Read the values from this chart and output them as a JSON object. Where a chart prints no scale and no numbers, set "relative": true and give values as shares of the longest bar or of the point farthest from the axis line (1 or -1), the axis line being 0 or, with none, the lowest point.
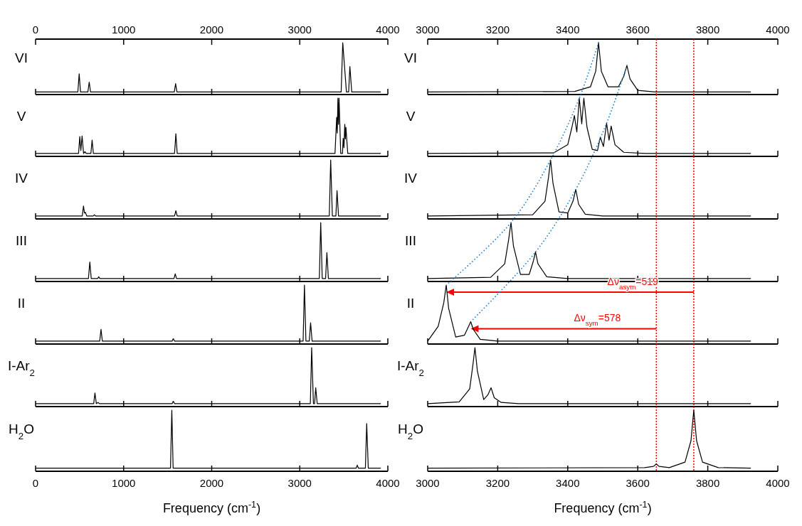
{
  "chart_data": [
    {
      "type": "line",
      "relative": true,
      "ylabel": "VI",
      "xlim": [
        0,
        4000
      ],
      "xticks": [
        0,
        1000,
        2000,
        3000,
        4000
      ],
      "series": [
        {
          "color": "#000000",
          "x": [
            0,
            480,
            495,
            510,
            594,
            609,
            624,
            1575,
            1590,
            1605,
            3470,
            3488,
            3530,
            3555,
            3569,
            3590,
            3920
          ],
          "values": [
            0.05,
            0.05,
            0.4,
            0.05,
            0.05,
            0.24,
            0.05,
            0.05,
            0.21,
            0.05,
            0.05,
            1,
            0.05,
            0.05,
            0.54,
            0.05,
            0.05
          ]
        }
      ]
    },
    {
      "type": "line",
      "relative": true,
      "ylabel": "V",
      "xlim": [
        0,
        4000
      ],
      "xticks": [
        0,
        1000,
        2000,
        3000,
        4000
      ],
      "tick_labels": false,
      "series": [
        {
          "color": "#000000",
          "x": [
            0,
            488,
            502,
            514,
            528,
            545,
            560,
            575,
            628,
            642,
            656,
            1578,
            1593,
            1608,
            3400,
            3419,
            3426,
            3433,
            3440,
            3446,
            3465,
            3485,
            3493,
            3502,
            3511,
            3518,
            3524,
            3545,
            3920
          ],
          "values": [
            0.05,
            0.05,
            0.34,
            0.1,
            0.35,
            0.05,
            0.08,
            0.05,
            0.05,
            0.28,
            0.05,
            0.05,
            0.39,
            0.05,
            0.05,
            0.67,
            0.4,
            1,
            0.55,
            1,
            0.05,
            0.05,
            0.31,
            0.15,
            0.55,
            0.3,
            0.5,
            0.05,
            0.05
          ]
        }
      ]
    },
    {
      "type": "line",
      "relative": true,
      "ylabel": "IV",
      "xlim": [
        0,
        4000
      ],
      "xticks": [
        0,
        1000,
        2000,
        3000,
        4000
      ],
      "tick_labels": false,
      "series": [
        {
          "color": "#000000",
          "x": [
            0,
            530,
            544,
            555,
            567,
            580,
            655,
            668,
            680,
            1578,
            1593,
            1608,
            3335,
            3351,
            3370,
            3410,
            3423,
            3440,
            3920
          ],
          "values": [
            0.05,
            0.05,
            0.22,
            0.1,
            0.11,
            0.05,
            0.05,
            0.07,
            0.05,
            0.05,
            0.14,
            0.05,
            0.05,
            1,
            0.05,
            0.05,
            0.48,
            0.05,
            0.05
          ]
        }
      ]
    },
    {
      "type": "line",
      "relative": true,
      "ylabel": "III",
      "xlim": [
        0,
        4000
      ],
      "xticks": [
        0,
        1000,
        2000,
        3000,
        4000
      ],
      "tick_labels": false,
      "series": [
        {
          "color": "#000000",
          "x": [
            0,
            600,
            616,
            632,
            705,
            717,
            730,
            1572,
            1586,
            1600,
            3222,
            3238,
            3255,
            3293,
            3308,
            3325,
            3920
          ],
          "values": [
            0.05,
            0.05,
            0.33,
            0.05,
            0.05,
            0.08,
            0.05,
            0.05,
            0.13,
            0.05,
            0.05,
            1,
            0.05,
            0.05,
            0.49,
            0.05,
            0.05
          ]
        }
      ]
    },
    {
      "type": "line",
      "relative": true,
      "ylabel": "II",
      "xlim": [
        0,
        4000
      ],
      "xticks": [
        0,
        1000,
        2000,
        3000,
        4000
      ],
      "tick_labels": false,
      "series": [
        {
          "color": "#000000",
          "x": [
            0,
            728,
            743,
            758,
            1550,
            1564,
            1578,
            3038,
            3053,
            3070,
            3108,
            3123,
            3140,
            3920
          ],
          "values": [
            0.05,
            0.05,
            0.25,
            0.05,
            0.05,
            0.09,
            0.05,
            0.05,
            1,
            0.05,
            0.05,
            0.36,
            0.05,
            0.05
          ]
        }
      ]
    },
    {
      "type": "line",
      "relative": true,
      "ylabel": "I-Ar$_{2}$",
      "xlim": [
        0,
        4000
      ],
      "xticks": [
        0,
        1000,
        2000,
        3000,
        4000
      ],
      "tick_labels": false,
      "series": [
        {
          "color": "#000000",
          "x": [
            0,
            660,
            674,
            690,
            710,
            725,
            1550,
            1564,
            1578,
            3120,
            3135,
            3155,
            3168,
            3181,
            3198,
            3920
          ],
          "values": [
            0.05,
            0.05,
            0.23,
            0.05,
            0.07,
            0.05,
            0.05,
            0.09,
            0.05,
            0.05,
            1,
            0.05,
            0.05,
            0.32,
            0.05,
            0.05
          ]
        }
      ]
    },
    {
      "type": "line",
      "relative": true,
      "ylabel": "H$_{2}$O",
      "xlabel": "Frequency (cm$^{-1}$)",
      "xlim": [
        0,
        4000
      ],
      "xticks": [
        0,
        1000,
        2000,
        3000,
        4000
      ],
      "series": [
        {
          "color": "#000000",
          "x": [
            0,
            1532,
            1547,
            1562,
            3640,
            3653,
            3666,
            3745,
            3760,
            3778,
            3920
          ],
          "values": [
            0.05,
            0.05,
            1,
            0.05,
            0.05,
            0.1,
            0.05,
            0.05,
            0.78,
            0.05,
            0.05
          ]
        }
      ]
    },
    {
      "type": "line",
      "relative": true,
      "ylabel": "VI",
      "xlim": [
        3000,
        4000
      ],
      "xticks": [
        3000,
        3200,
        3400,
        3600,
        3800,
        4000
      ],
      "ref_lines": [
        {
          "axis": "x",
          "value": 3760,
          "color": "#ff0000",
          "line_style": "dotted"
        },
        {
          "axis": "x",
          "value": 3653,
          "color": "#ff0000",
          "line_style": "dotted"
        }
      ],
      "series": [
        {
          "color": "#000000",
          "x": [
            3000,
            3420,
            3465,
            3480,
            3488,
            3496,
            3515,
            3545,
            3560,
            3569,
            3578,
            3600,
            3650,
            3923
          ],
          "values": [
            0.05,
            0.06,
            0.15,
            0.45,
            1,
            0.45,
            0.15,
            0.15,
            0.35,
            0.56,
            0.3,
            0.08,
            0.05,
            0.05
          ]
        }
      ]
    },
    {
      "type": "line",
      "relative": true,
      "ylabel": "V",
      "xlim": [
        3000,
        4000
      ],
      "xticks": [
        3000,
        3200,
        3400,
        3600,
        3800,
        4000
      ],
      "tick_labels": false,
      "ref_lines": [
        {
          "axis": "x",
          "value": 3760,
          "color": "#ff0000",
          "line_style": "dotted"
        },
        {
          "axis": "x",
          "value": 3653,
          "color": "#ff0000",
          "line_style": "dotted"
        }
      ],
      "series": [
        {
          "color": "#000000",
          "x": [
            3000,
            3360,
            3400,
            3412,
            3419,
            3426,
            3433,
            3440,
            3446,
            3455,
            3470,
            3485,
            3493,
            3502,
            3511,
            3518,
            3524,
            3535,
            3560,
            3620,
            3923
          ],
          "values": [
            0.05,
            0.06,
            0.2,
            0.5,
            0.7,
            0.42,
            1,
            0.56,
            1,
            0.5,
            0.12,
            0.1,
            0.33,
            0.17,
            0.57,
            0.28,
            0.52,
            0.2,
            0.07,
            0.05,
            0.05
          ]
        }
      ]
    },
    {
      "type": "line",
      "relative": true,
      "ylabel": "IV",
      "xlim": [
        3000,
        4000
      ],
      "xticks": [
        3000,
        3200,
        3400,
        3600,
        3800,
        4000
      ],
      "tick_labels": false,
      "ref_lines": [
        {
          "axis": "x",
          "value": 3760,
          "color": "#ff0000",
          "line_style": "dotted"
        },
        {
          "axis": "x",
          "value": 3653,
          "color": "#ff0000",
          "line_style": "dotted"
        }
      ],
      "series": [
        {
          "color": "#000000",
          "x": [
            3000,
            3300,
            3335,
            3345,
            3351,
            3358,
            3375,
            3400,
            3415,
            3423,
            3431,
            3450,
            3500,
            3923
          ],
          "values": [
            0.05,
            0.07,
            0.3,
            0.7,
            1,
            0.6,
            0.12,
            0.1,
            0.3,
            0.5,
            0.25,
            0.08,
            0.05,
            0.05
          ]
        }
      ]
    },
    {
      "type": "line",
      "relative": true,
      "ylabel": "III",
      "xlim": [
        3000,
        4000
      ],
      "xticks": [
        3000,
        3200,
        3400,
        3600,
        3800,
        4000
      ],
      "tick_labels": false,
      "ref_lines": [
        {
          "axis": "x",
          "value": 3760,
          "color": "#ff0000",
          "line_style": "dotted"
        },
        {
          "axis": "x",
          "value": 3653,
          "color": "#ff0000",
          "line_style": "dotted"
        }
      ],
      "series": [
        {
          "color": "#000000",
          "x": [
            3000,
            3180,
            3220,
            3231,
            3238,
            3245,
            3265,
            3290,
            3302,
            3308,
            3315,
            3340,
            3400,
            3923
          ],
          "values": [
            0.05,
            0.07,
            0.3,
            0.7,
            1,
            0.6,
            0.12,
            0.12,
            0.35,
            0.5,
            0.3,
            0.08,
            0.05,
            0.05
          ]
        }
      ]
    },
    {
      "type": "line",
      "relative": true,
      "ylabel": "II",
      "xlim": [
        3000,
        4000
      ],
      "xticks": [
        3000,
        3200,
        3400,
        3600,
        3800,
        4000
      ],
      "tick_labels": false,
      "ref_lines": [
        {
          "axis": "x",
          "value": 3760,
          "color": "#ff0000",
          "line_style": "dotted"
        },
        {
          "axis": "x",
          "value": 3653,
          "color": "#ff0000",
          "line_style": "dotted"
        }
      ],
      "annotations": [
        "Δν$_{asym}$=519",
        "Δν$_{sym}$=578"
      ],
      "series": [
        {
          "color": "#000000",
          "x": [
            3000,
            3030,
            3046,
            3053,
            3060,
            3080,
            3105,
            3117,
            3123,
            3130,
            3150,
            3200,
            3923
          ],
          "values": [
            0.05,
            0.3,
            0.7,
            1,
            0.6,
            0.12,
            0.15,
            0.3,
            0.38,
            0.25,
            0.08,
            0.05,
            0.05
          ]
        }
      ]
    },
    {
      "type": "line",
      "relative": true,
      "ylabel": "I-Ar$_{2}$",
      "xlim": [
        3000,
        4000
      ],
      "xticks": [
        3000,
        3200,
        3400,
        3600,
        3800,
        4000
      ],
      "tick_labels": false,
      "ref_lines": [
        {
          "axis": "x",
          "value": 3760,
          "color": "#ff0000",
          "line_style": "dotted"
        },
        {
          "axis": "x",
          "value": 3653,
          "color": "#ff0000",
          "line_style": "dotted"
        }
      ],
      "series": [
        {
          "color": "#000000",
          "x": [
            3000,
            3090,
            3120,
            3129,
            3135,
            3142,
            3160,
            3172,
            3181,
            3190,
            3210,
            3260,
            3923
          ],
          "values": [
            0.05,
            0.08,
            0.3,
            0.7,
            1,
            0.6,
            0.12,
            0.2,
            0.32,
            0.15,
            0.07,
            0.05,
            0.05
          ]
        }
      ]
    },
    {
      "type": "line",
      "relative": true,
      "ylabel": "H$_{2}$O",
      "xlabel": "Frequency (cm$^{-1}$)",
      "xlim": [
        3000,
        4000
      ],
      "xticks": [
        3000,
        3200,
        3400,
        3600,
        3800,
        4000
      ],
      "ref_lines": [
        {
          "axis": "x",
          "value": 3760,
          "color": "#ff0000",
          "line_style": "dotted"
        },
        {
          "axis": "x",
          "value": 3653,
          "color": "#ff0000",
          "line_style": "dotted"
        }
      ],
      "series": [
        {
          "color": "#000000",
          "x": [
            3000,
            3620,
            3645,
            3653,
            3661,
            3690,
            3735,
            3752,
            3760,
            3768,
            3785,
            3830,
            3923
          ],
          "values": [
            0.05,
            0.06,
            0.08,
            0.12,
            0.08,
            0.06,
            0.15,
            0.5,
            1,
            0.5,
            0.15,
            0.06,
            0.05
          ]
        }
      ]
    }
  ]
}
